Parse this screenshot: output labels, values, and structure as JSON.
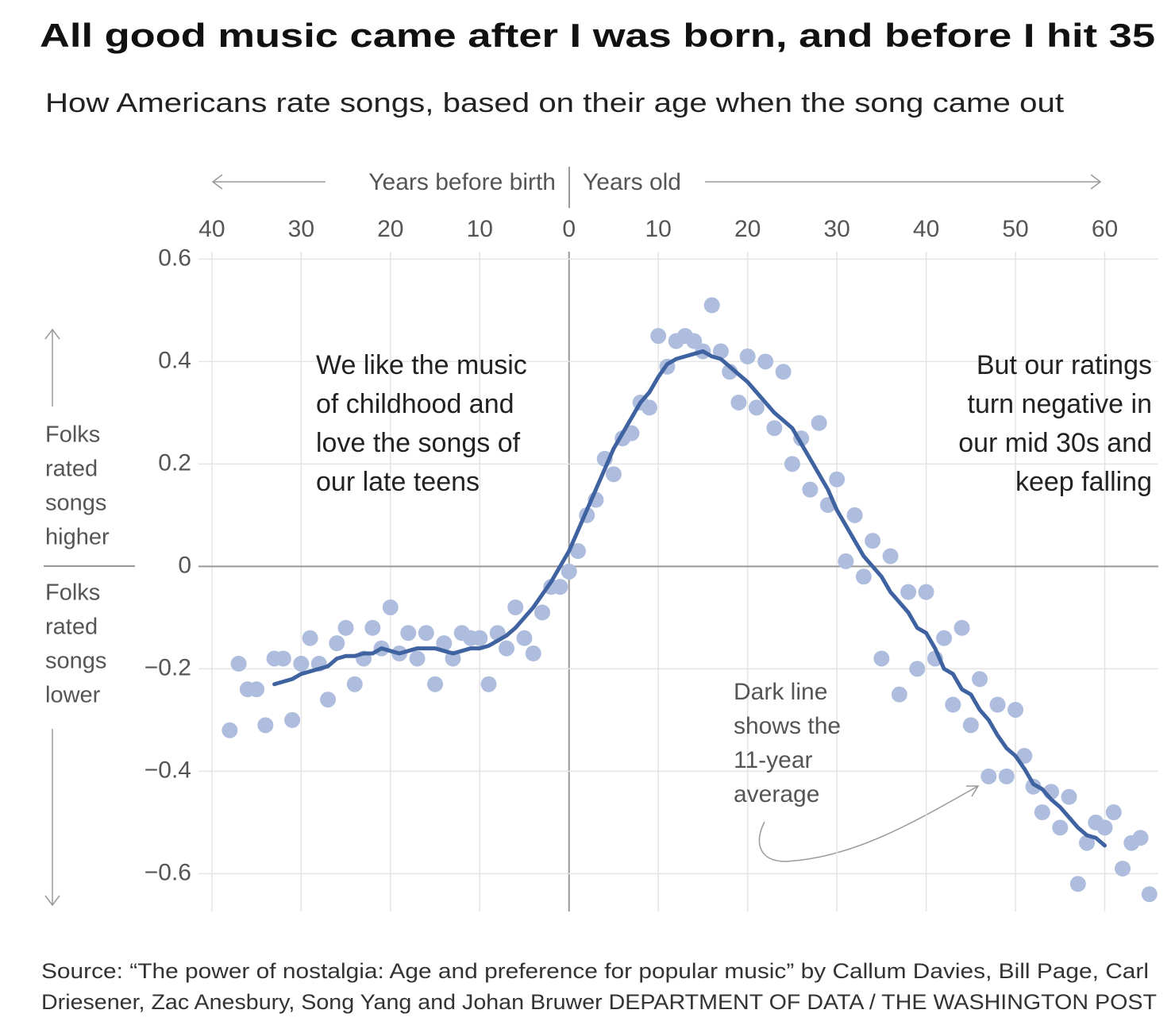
{
  "chart_data": {
    "type": "scatter",
    "title": "All good music came after I was born, and before I hit 35",
    "subtitle": "How Americans rate songs, based on their age when the song came out",
    "top_left_label": "Years before birth",
    "top_right_label": "Years old",
    "left_label_higher": [
      "Folks",
      "rated",
      "songs",
      "higher"
    ],
    "left_label_lower": [
      "Folks",
      "rated",
      "songs",
      "lower"
    ],
    "callout_childhood": [
      "We like the music",
      "of childhood and",
      "love the songs of",
      "our late teens"
    ],
    "callout_negative": [
      "But our ratings",
      "turn negative in",
      "our mid 30s and",
      "keep falling"
    ],
    "callout_line": [
      "Dark line",
      "shows the",
      "11-year",
      "average"
    ],
    "xlim": [
      -41.5,
      66
    ],
    "ylim": [
      -0.68,
      0.63
    ],
    "xticks": [
      {
        "value": -40,
        "label": "40"
      },
      {
        "value": -30,
        "label": "30"
      },
      {
        "value": -20,
        "label": "20"
      },
      {
        "value": -10,
        "label": "10"
      },
      0,
      10,
      20,
      30,
      40,
      50,
      60
    ],
    "yticks": [
      0.6,
      0.4,
      0.2,
      0,
      {
        "value": -0.2,
        "label": "−0.2"
      },
      {
        "value": -0.4,
        "label": "−0.4"
      },
      {
        "value": -0.6,
        "label": "−0.6"
      }
    ],
    "grid": true,
    "series": [
      {
        "type": "scatter",
        "color": "#aebddd",
        "x": [
          -38,
          -37,
          -36,
          -35,
          -34,
          -33,
          -32,
          -31,
          -30,
          -29,
          -28,
          -27,
          -26,
          -25,
          -24,
          -23,
          -22,
          -21,
          -20,
          -19,
          -18,
          -17,
          -16,
          -15,
          -14,
          -13,
          -12,
          -11,
          -10,
          -9,
          -8,
          -7,
          -6,
          -5,
          -4,
          -3,
          -2,
          -1,
          0,
          1,
          2,
          3,
          4,
          5,
          6,
          7,
          8,
          9,
          10,
          11,
          12,
          13,
          14,
          15,
          16,
          17,
          18,
          19,
          20,
          21,
          22,
          23,
          24,
          25,
          26,
          27,
          28,
          29,
          30,
          31,
          32,
          33,
          34,
          35,
          36,
          37,
          38,
          39,
          40,
          41,
          42,
          43,
          44,
          45,
          46,
          47,
          48,
          49,
          50,
          51,
          52,
          53,
          54,
          55,
          56,
          57,
          58,
          59,
          60,
          61,
          62,
          63,
          64,
          65
        ],
        "values": [
          -0.32,
          -0.19,
          -0.24,
          -0.24,
          -0.31,
          -0.18,
          -0.18,
          -0.3,
          -0.19,
          -0.14,
          -0.19,
          -0.26,
          -0.15,
          -0.12,
          -0.23,
          -0.18,
          -0.12,
          -0.16,
          -0.08,
          -0.17,
          -0.13,
          -0.18,
          -0.13,
          -0.23,
          -0.15,
          -0.18,
          -0.13,
          -0.14,
          -0.14,
          -0.23,
          -0.13,
          -0.16,
          -0.08,
          -0.14,
          -0.17,
          -0.09,
          -0.04,
          -0.04,
          -0.01,
          0.03,
          0.1,
          0.13,
          0.21,
          0.18,
          0.25,
          0.26,
          0.32,
          0.31,
          0.45,
          0.39,
          0.44,
          0.45,
          0.44,
          0.42,
          0.51,
          0.42,
          0.38,
          0.32,
          0.41,
          0.31,
          0.4,
          0.27,
          0.38,
          0.2,
          0.25,
          0.15,
          0.28,
          0.12,
          0.17,
          0.01,
          0.1,
          -0.02,
          0.05,
          -0.18,
          0.02,
          -0.25,
          -0.05,
          -0.2,
          -0.05,
          -0.18,
          -0.14,
          -0.27,
          -0.12,
          -0.31,
          -0.22,
          -0.41,
          -0.27,
          -0.41,
          -0.28,
          -0.37,
          -0.43,
          -0.48,
          -0.44,
          -0.51,
          -0.45,
          -0.62,
          -0.54,
          -0.5,
          -0.51,
          -0.48,
          -0.59,
          -0.54,
          -0.53,
          -0.64
        ]
      },
      {
        "type": "line",
        "color": "#3f62a0",
        "x": [
          -33,
          -32,
          -31,
          -30,
          -29,
          -28,
          -27,
          -26,
          -25,
          -24,
          -23,
          -22,
          -21,
          -20,
          -19,
          -18,
          -17,
          -16,
          -15,
          -14,
          -13,
          -12,
          -11,
          -10,
          -9,
          -8,
          -7,
          -6,
          -5,
          -4,
          -3,
          -2,
          -1,
          0,
          1,
          2,
          3,
          4,
          5,
          6,
          7,
          8,
          9,
          10,
          11,
          12,
          13,
          14,
          15,
          16,
          17,
          18,
          19,
          20,
          21,
          22,
          23,
          24,
          25,
          26,
          27,
          28,
          29,
          30,
          31,
          32,
          33,
          34,
          35,
          36,
          37,
          38,
          39,
          40,
          41,
          42,
          43,
          44,
          45,
          46,
          47,
          48,
          49,
          50,
          51,
          52,
          53,
          54,
          55,
          56,
          57,
          58,
          59,
          60
        ],
        "values": [
          -0.23,
          -0.225,
          -0.22,
          -0.21,
          -0.205,
          -0.2,
          -0.195,
          -0.18,
          -0.175,
          -0.175,
          -0.17,
          -0.17,
          -0.16,
          -0.165,
          -0.17,
          -0.165,
          -0.16,
          -0.16,
          -0.16,
          -0.165,
          -0.17,
          -0.165,
          -0.16,
          -0.16,
          -0.155,
          -0.145,
          -0.135,
          -0.12,
          -0.1,
          -0.08,
          -0.055,
          -0.03,
          0.0,
          0.03,
          0.07,
          0.11,
          0.15,
          0.19,
          0.23,
          0.26,
          0.29,
          0.32,
          0.34,
          0.37,
          0.395,
          0.405,
          0.41,
          0.415,
          0.42,
          0.41,
          0.405,
          0.39,
          0.375,
          0.36,
          0.34,
          0.32,
          0.3,
          0.285,
          0.27,
          0.24,
          0.21,
          0.18,
          0.15,
          0.11,
          0.08,
          0.05,
          0.02,
          0.0,
          -0.02,
          -0.05,
          -0.07,
          -0.09,
          -0.12,
          -0.13,
          -0.16,
          -0.2,
          -0.21,
          -0.24,
          -0.25,
          -0.28,
          -0.3,
          -0.33,
          -0.355,
          -0.37,
          -0.395,
          -0.425,
          -0.435,
          -0.455,
          -0.47,
          -0.49,
          -0.51,
          -0.525,
          -0.53,
          -0.545
        ]
      }
    ]
  },
  "source": [
    "Source: “The power of nostalgia: Age and preference for popular music” by Callum Davies, Bill Page, Carl",
    "Driesener, Zac Anesbury, Song Yang and Johan Bruwer DEPARTMENT OF DATA / THE WASHINGTON POST"
  ]
}
